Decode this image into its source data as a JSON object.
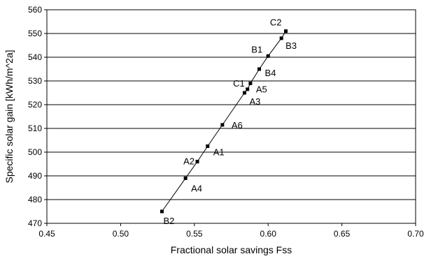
{
  "chart_data": {
    "type": "scatter",
    "title": "",
    "xlabel": "Fractional solar savings Fss",
    "ylabel": "Specific solar gain [kWh/m^2a]",
    "xlim": [
      0.45,
      0.7
    ],
    "ylim": [
      470,
      560
    ],
    "xticks": [
      "0.45",
      "0.50",
      "0.55",
      "0.60",
      "0.65",
      "0.70"
    ],
    "yticks": [
      "470",
      "480",
      "490",
      "500",
      "510",
      "520",
      "530",
      "540",
      "550",
      "560"
    ],
    "grid": "horizontal",
    "connected": true,
    "points": [
      {
        "label": "B2",
        "x": 0.528,
        "y": 475.0
      },
      {
        "label": "A4",
        "x": 0.544,
        "y": 489.0
      },
      {
        "label": "A2",
        "x": 0.552,
        "y": 496.0
      },
      {
        "label": "A1",
        "x": 0.559,
        "y": 502.5
      },
      {
        "label": "A6",
        "x": 0.569,
        "y": 511.5
      },
      {
        "label": "A3",
        "x": 0.584,
        "y": 525.0
      },
      {
        "label": "C1",
        "x": 0.586,
        "y": 526.5
      },
      {
        "label": "A5",
        "x": 0.588,
        "y": 529.0
      },
      {
        "label": "B4",
        "x": 0.594,
        "y": 535.0
      },
      {
        "label": "B1",
        "x": 0.6,
        "y": 540.5
      },
      {
        "label": "B3",
        "x": 0.609,
        "y": 548.0
      },
      {
        "label": "C2",
        "x": 0.612,
        "y": 551.0
      }
    ]
  }
}
